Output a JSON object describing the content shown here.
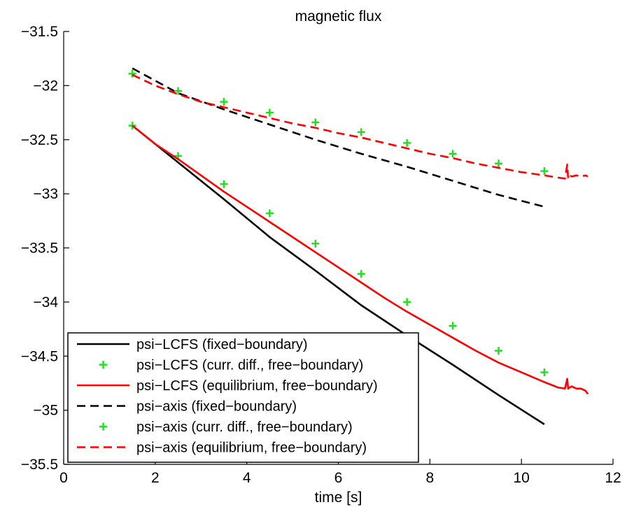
{
  "chart_data": {
    "type": "line",
    "title": "magnetic flux",
    "xlabel": "time [s]",
    "ylabel": "",
    "xlim": [
      0,
      12
    ],
    "ylim": [
      -35.5,
      -31.5
    ],
    "xticks": [
      0,
      2,
      4,
      6,
      8,
      10,
      12
    ],
    "xtick_labels": [
      "0",
      "2",
      "4",
      "6",
      "8",
      "10",
      "12"
    ],
    "yticks": [
      -35.5,
      -35,
      -34.5,
      -34,
      -33.5,
      -33,
      -32.5,
      -32,
      -31.5
    ],
    "ytick_labels": [
      "−35.5",
      "−35",
      "−34.5",
      "−34",
      "−33.5",
      "−33",
      "−32.5",
      "−32",
      "−31.5"
    ],
    "grid": false,
    "legend_position": "bottom-left",
    "series": [
      {
        "name": "psi−LCFS (fixed−boundary)",
        "style": "solid",
        "marker": "none",
        "color": "#000000",
        "x": [
          1.5,
          2.5,
          3.5,
          4.5,
          5.5,
          6.5,
          7.5,
          8.5,
          9.5,
          10.5
        ],
        "y": [
          -32.37,
          -32.71,
          -33.05,
          -33.4,
          -33.71,
          -34.03,
          -34.31,
          -34.58,
          -34.86,
          -35.13
        ]
      },
      {
        "name": "psi−LCFS (curr. diff., free−boundary)",
        "style": "none",
        "marker": "plus",
        "color": "#22dd22",
        "x": [
          1.5,
          2.5,
          3.5,
          4.5,
          5.5,
          6.5,
          7.5,
          8.5,
          9.5,
          10.5
        ],
        "y": [
          -32.37,
          -32.65,
          -32.91,
          -33.18,
          -33.46,
          -33.74,
          -34.0,
          -34.22,
          -34.45,
          -34.65
        ]
      },
      {
        "name": "psi−LCFS (equilibrium, free−boundary)",
        "style": "solid",
        "marker": "none",
        "color": "#ff0000",
        "x": [
          1.5,
          2.0,
          2.5,
          3.0,
          3.5,
          4.0,
          4.5,
          5.0,
          5.5,
          6.0,
          6.5,
          7.0,
          7.5,
          8.0,
          8.5,
          9.0,
          9.5,
          10.0,
          10.5,
          10.8,
          10.95,
          11.0,
          11.02,
          11.05,
          11.1,
          11.2,
          11.3,
          11.4,
          11.45
        ],
        "y": [
          -32.37,
          -32.54,
          -32.68,
          -32.83,
          -32.98,
          -33.12,
          -33.26,
          -33.4,
          -33.54,
          -33.68,
          -33.82,
          -33.96,
          -34.09,
          -34.21,
          -34.33,
          -34.45,
          -34.56,
          -34.65,
          -34.74,
          -34.79,
          -34.8,
          -34.71,
          -34.8,
          -34.79,
          -34.78,
          -34.8,
          -34.8,
          -34.82,
          -34.85
        ]
      },
      {
        "name": "psi−axis (fixed−boundary)",
        "style": "dashed",
        "marker": "none",
        "color": "#000000",
        "x": [
          1.5,
          2.5,
          3.5,
          4.5,
          5.5,
          6.5,
          7.5,
          8.5,
          9.5,
          10.5
        ],
        "y": [
          -31.84,
          -32.07,
          -32.22,
          -32.36,
          -32.5,
          -32.63,
          -32.75,
          -32.88,
          -33.01,
          -33.12
        ]
      },
      {
        "name": "psi−axis (curr. diff., free−boundary)",
        "style": "none",
        "marker": "plus",
        "color": "#22dd22",
        "x": [
          1.5,
          2.5,
          3.5,
          4.5,
          5.5,
          6.5,
          7.5,
          8.5,
          9.5,
          10.5
        ],
        "y": [
          -31.89,
          -32.05,
          -32.15,
          -32.25,
          -32.34,
          -32.43,
          -32.53,
          -32.63,
          -32.72,
          -32.79
        ]
      },
      {
        "name": "psi−axis (equilibrium, free−boundary)",
        "style": "dashed",
        "marker": "none",
        "color": "#ff0000",
        "x": [
          1.5,
          2.0,
          2.5,
          3.0,
          3.5,
          4.0,
          4.5,
          5.0,
          5.5,
          6.0,
          6.5,
          7.0,
          7.5,
          8.0,
          8.5,
          9.0,
          9.5,
          10.0,
          10.5,
          10.8,
          10.95,
          11.0,
          11.02,
          11.05,
          11.1,
          11.2,
          11.3,
          11.4,
          11.45
        ],
        "y": [
          -31.9,
          -32.0,
          -32.08,
          -32.15,
          -32.2,
          -32.25,
          -32.3,
          -32.35,
          -32.39,
          -32.44,
          -32.48,
          -32.53,
          -32.58,
          -32.63,
          -32.67,
          -32.72,
          -32.76,
          -32.8,
          -32.83,
          -32.85,
          -32.86,
          -32.73,
          -32.86,
          -32.83,
          -32.84,
          -32.83,
          -32.84,
          -32.83,
          -32.84
        ]
      }
    ]
  }
}
